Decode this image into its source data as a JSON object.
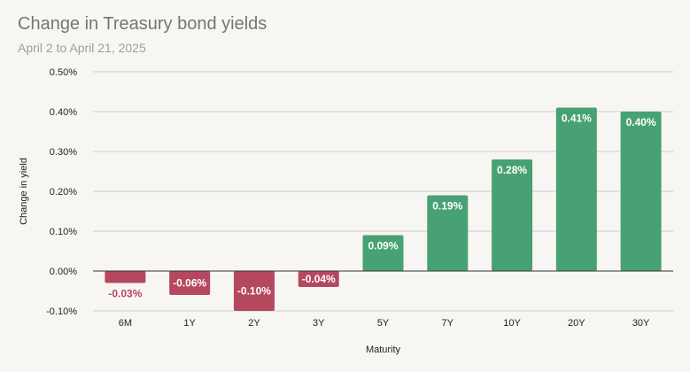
{
  "chart_data": {
    "type": "bar",
    "title": "Change in Treasury bond yields",
    "subtitle": "April 2 to April 21, 2025",
    "xlabel": "Maturity",
    "ylabel": "Change in yield",
    "categories": [
      "6M",
      "1Y",
      "2Y",
      "3Y",
      "5Y",
      "7Y",
      "10Y",
      "20Y",
      "30Y"
    ],
    "values": [
      -0.03,
      -0.06,
      -0.1,
      -0.04,
      0.09,
      0.19,
      0.28,
      0.41,
      0.4
    ],
    "data_labels": [
      "-0.03%",
      "-0.06%",
      "-0.10%",
      "-0.04%",
      "0.09%",
      "0.19%",
      "0.28%",
      "0.41%",
      "0.40%"
    ],
    "ylim": [
      -0.1,
      0.5
    ],
    "yticks": [
      -0.1,
      0,
      0.1,
      0.2,
      0.3,
      0.4,
      0.5
    ],
    "ytick_labels": [
      "-0.10%",
      "0.00%",
      "0.10%",
      "0.20%",
      "0.30%",
      "0.40%",
      "0.50%"
    ],
    "grid": true,
    "legend": "none",
    "colors": {
      "positive": "#47a174",
      "negative": "#b5485f",
      "grid": "#cccccc",
      "zero_line": "#333333"
    }
  }
}
